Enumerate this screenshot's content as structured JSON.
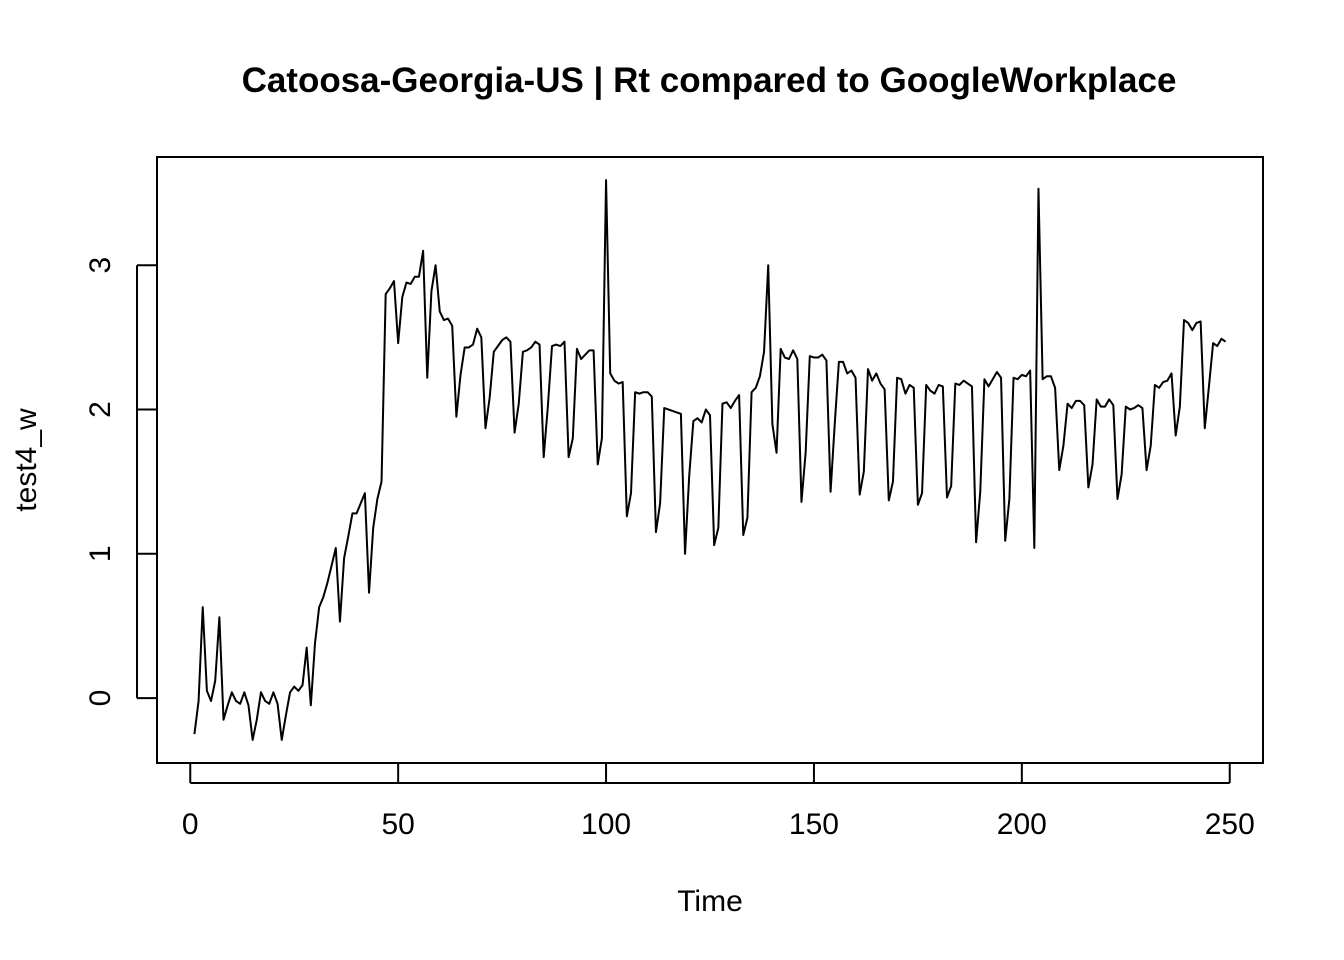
{
  "chart_data": {
    "type": "line",
    "title": "Catoosa-Georgia-US | Rt compared to GoogleWorkplace",
    "xlabel": "Time",
    "ylabel": "test4_w",
    "xlim": [
      -8,
      258
    ],
    "ylim": [
      -0.45,
      3.75
    ],
    "x_ticks": [
      0,
      50,
      100,
      150,
      200,
      250
    ],
    "y_ticks": [
      0,
      1,
      2,
      3
    ],
    "grid": false,
    "legend": "none",
    "x_start": 1,
    "series": [
      {
        "color": "#000000",
        "values": [
          -0.25,
          -0.02,
          0.63,
          0.05,
          -0.02,
          0.12,
          0.56,
          -0.15,
          -0.05,
          0.04,
          -0.02,
          -0.04,
          0.04,
          -0.05,
          -0.29,
          -0.15,
          0.04,
          -0.02,
          -0.04,
          0.04,
          -0.04,
          -0.29,
          -0.12,
          0.04,
          0.08,
          0.05,
          0.09,
          0.35,
          -0.05,
          0.38,
          0.63,
          0.7,
          0.8,
          0.92,
          1.04,
          0.53,
          0.97,
          1.12,
          1.28,
          1.28,
          1.35,
          1.42,
          0.73,
          1.18,
          1.38,
          1.5,
          2.8,
          2.84,
          2.89,
          2.46,
          2.78,
          2.88,
          2.87,
          2.92,
          2.92,
          3.1,
          2.22,
          2.82,
          3.0,
          2.68,
          2.62,
          2.63,
          2.58,
          1.95,
          2.24,
          2.43,
          2.43,
          2.45,
          2.56,
          2.5,
          1.87,
          2.08,
          2.4,
          2.44,
          2.48,
          2.5,
          2.47,
          1.84,
          2.04,
          2.4,
          2.41,
          2.43,
          2.47,
          2.45,
          1.67,
          2.02,
          2.44,
          2.45,
          2.44,
          2.47,
          1.67,
          1.8,
          2.42,
          2.35,
          2.38,
          2.41,
          2.41,
          1.62,
          1.8,
          3.59,
          2.25,
          2.2,
          2.18,
          2.19,
          1.26,
          1.42,
          2.12,
          2.11,
          2.12,
          2.12,
          2.09,
          1.15,
          1.35,
          2.01,
          2.0,
          1.99,
          1.98,
          1.97,
          1.0,
          1.54,
          1.92,
          1.94,
          1.91,
          2.0,
          1.96,
          1.06,
          1.18,
          2.04,
          2.05,
          2.01,
          2.06,
          2.1,
          1.13,
          1.25,
          2.12,
          2.15,
          2.23,
          2.4,
          3.0,
          1.9,
          1.7,
          2.42,
          2.36,
          2.35,
          2.41,
          2.35,
          1.36,
          1.7,
          2.37,
          2.36,
          2.36,
          2.38,
          2.34,
          1.43,
          1.9,
          2.33,
          2.33,
          2.25,
          2.27,
          2.22,
          1.41,
          1.57,
          2.28,
          2.2,
          2.25,
          2.18,
          2.14,
          1.37,
          1.5,
          2.22,
          2.21,
          2.11,
          2.17,
          2.15,
          1.34,
          1.42,
          2.17,
          2.13,
          2.11,
          2.17,
          2.16,
          1.39,
          1.47,
          2.18,
          2.17,
          2.2,
          2.18,
          2.16,
          1.08,
          1.43,
          2.21,
          2.16,
          2.21,
          2.26,
          2.22,
          1.09,
          1.38,
          2.22,
          2.21,
          2.24,
          2.23,
          2.27,
          1.04,
          3.53,
          2.21,
          2.23,
          2.23,
          2.15,
          1.58,
          1.75,
          2.04,
          2.01,
          2.06,
          2.06,
          2.03,
          1.46,
          1.62,
          2.07,
          2.02,
          2.02,
          2.07,
          2.03,
          1.38,
          1.55,
          2.02,
          2.0,
          2.01,
          2.03,
          2.01,
          1.58,
          1.75,
          2.17,
          2.15,
          2.19,
          2.2,
          2.25,
          1.82,
          2.02,
          2.62,
          2.6,
          2.55,
          2.6,
          2.61,
          1.87,
          2.16,
          2.46,
          2.44,
          2.49,
          2.47
        ]
      }
    ]
  }
}
